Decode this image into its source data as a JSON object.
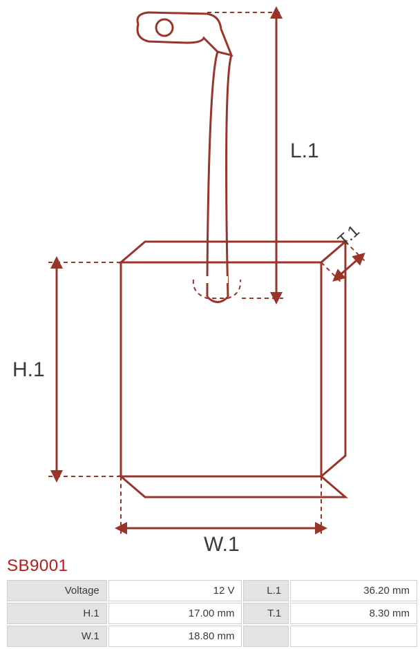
{
  "product_code": "SB9001",
  "product_code_color": "#c01818",
  "diagram": {
    "stroke_color": "#9a332a",
    "stroke_width": 3,
    "dash_pattern": "6,5",
    "labels": {
      "L1": "L.1",
      "H1": "H.1",
      "W1": "W.1",
      "T1": "T.1"
    },
    "label_fontsize": 30,
    "label_color": "#3a3a3a"
  },
  "table": {
    "header_bg": "#e3e3e3",
    "border_color": "#cfcfcf",
    "text_color": "#3a3a3a",
    "rows": [
      {
        "label1": "Voltage",
        "value1": "12 V",
        "label2": "L.1",
        "value2": "36.20 mm"
      },
      {
        "label1": "H.1",
        "value1": "17.00 mm",
        "label2": "T.1",
        "value2": "8.30 mm"
      },
      {
        "label1": "W.1",
        "value1": "18.80 mm",
        "label2": "",
        "value2": ""
      }
    ]
  }
}
